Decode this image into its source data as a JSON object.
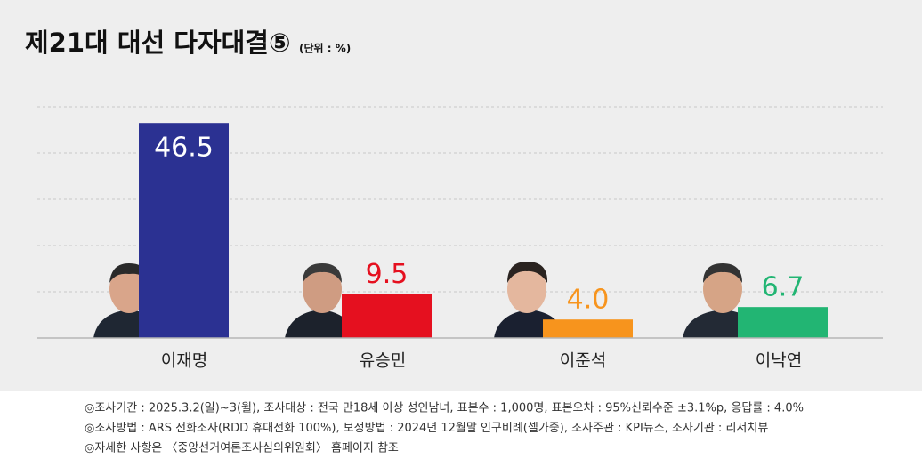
{
  "chart_data": {
    "type": "bar",
    "title": "제21대 대선 다자대결⑤",
    "subtitle": "(단위 : %)",
    "categories": [
      "이재명",
      "유승민",
      "이준석",
      "이낙연"
    ],
    "values": [
      46.5,
      9.5,
      4.0,
      6.7
    ],
    "value_labels": [
      "46.5",
      "9.5",
      "4.0",
      "6.7"
    ],
    "colors": [
      "#2b3192",
      "#e5101f",
      "#f7941d",
      "#22b573"
    ],
    "ylim": [
      0,
      50
    ],
    "yticks": [
      10,
      20,
      30,
      40,
      50
    ],
    "grid": true,
    "footnotes": [
      "◎조사기간 : 2025.3.2(일)~3(월), 조사대상 : 전국 만18세 이상 성인남녀, 표본수 : 1,000명, 표본오차 : 95%신뢰수준 ±3.1%p, 응답률 : 4.0%",
      "◎조사방법 : ARS 전화조사(RDD 휴대전화 100%), 보정방법 : 2024년 12월말 인구비례(셀가중), 조사주관 : KPI뉴스, 조사기관 : 리서치뷰",
      "◎자세한 사항은 〈중앙선거여론조사심의위원회〉 홈페이지 참조"
    ]
  }
}
